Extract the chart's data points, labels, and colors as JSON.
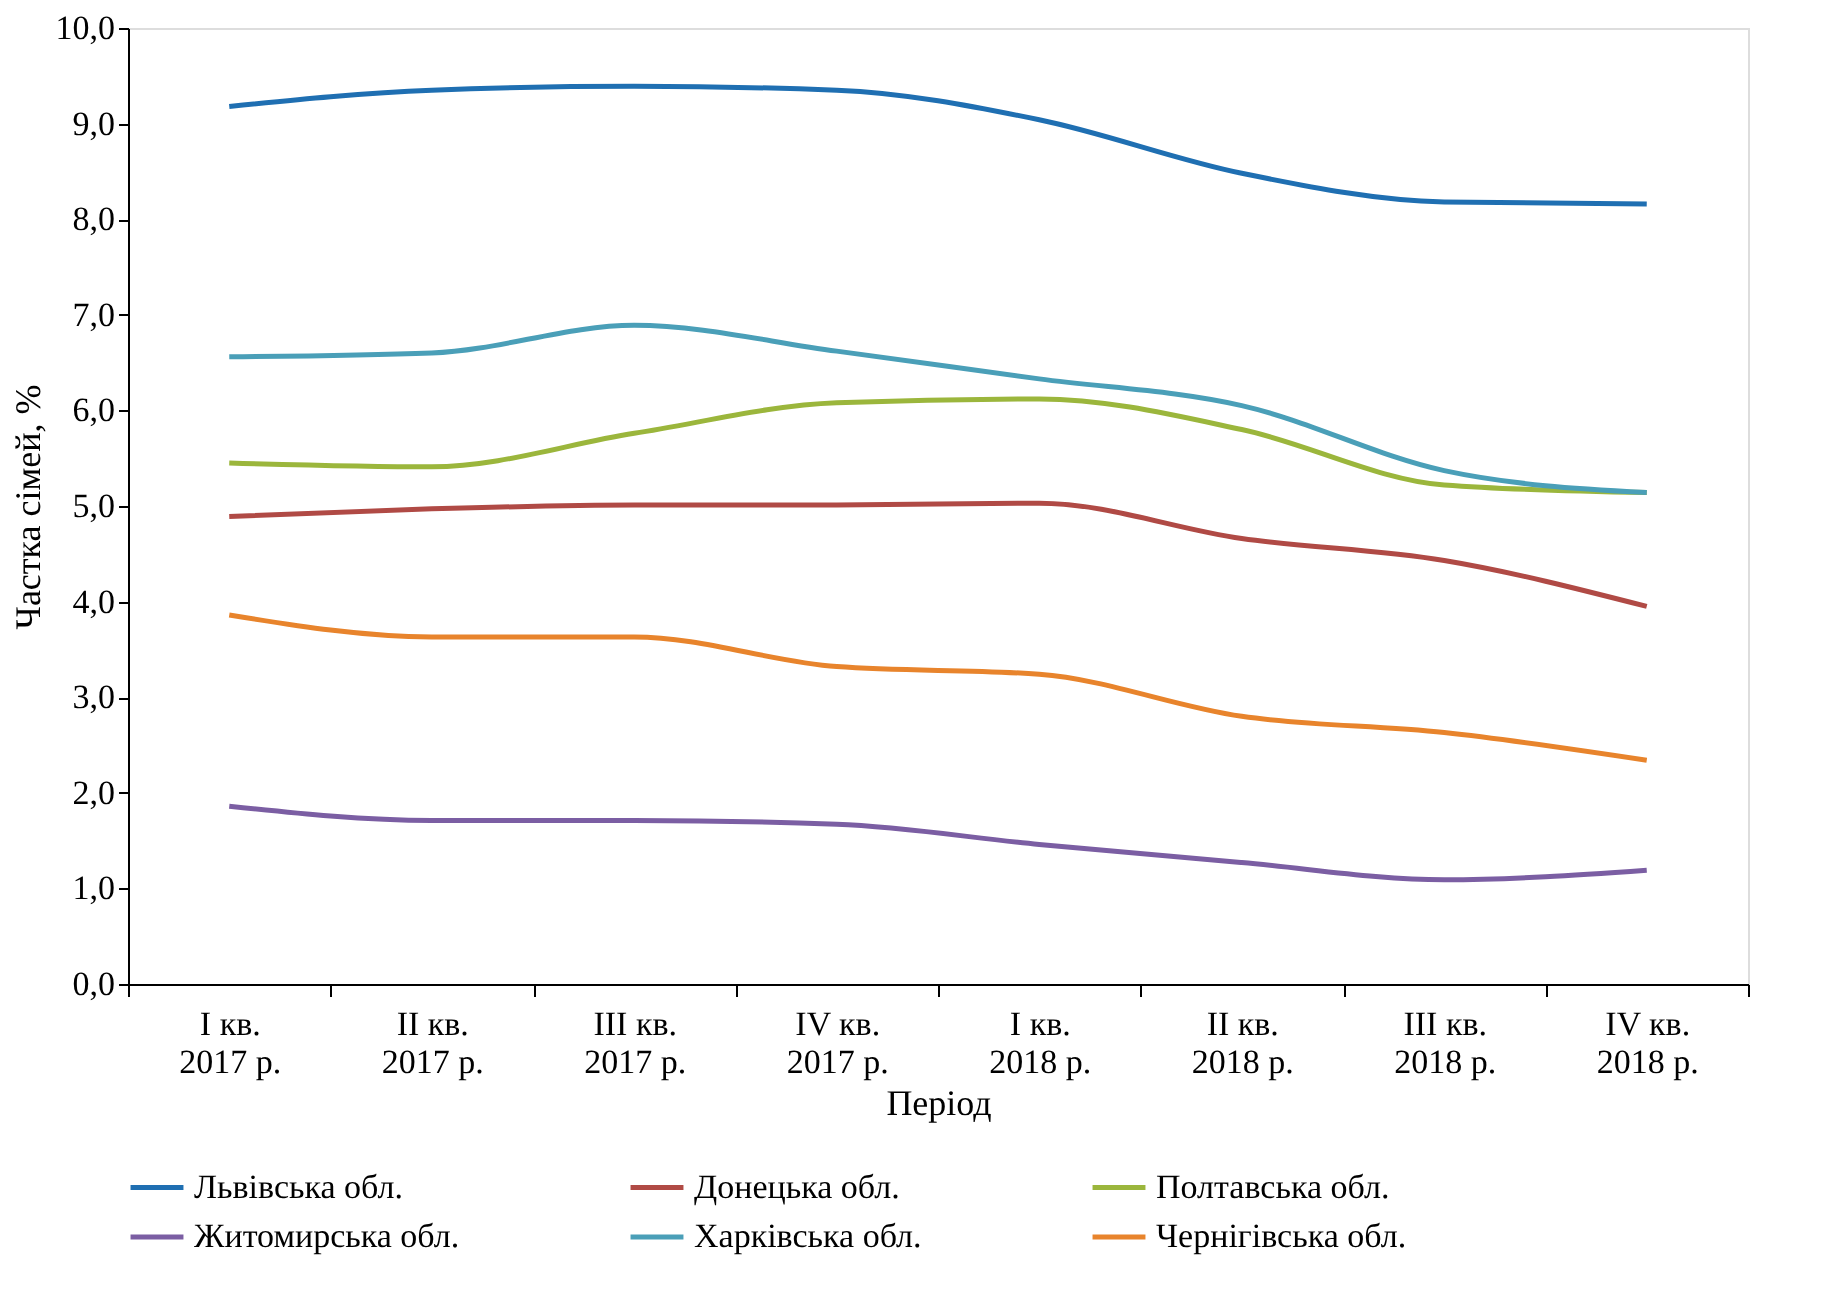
{
  "chart_data": {
    "type": "line",
    "xlabel": "Період",
    "ylabel": "Частка сімей, %",
    "categories": [
      "I кв.\n2017 р.",
      "II кв.\n2017 р.",
      "III кв.\n2017 р.",
      "IV кв.\n2017 р.",
      "I кв.\n2018 р.",
      "II кв.\n2018 р.",
      "III кв.\n2018 р.",
      "IV кв.\n2018 р."
    ],
    "series": [
      {
        "name": "Львівська обл.",
        "color": "#1f6fb2",
        "values": [
          9.18,
          9.35,
          9.39,
          9.35,
          9.04,
          8.48,
          8.18,
          8.16
        ]
      },
      {
        "name": "Донецька обл.",
        "color": "#b04a45",
        "values": [
          4.89,
          4.97,
          5.01,
          5.01,
          5.03,
          4.66,
          4.43,
          3.95
        ]
      },
      {
        "name": "Полтавська обл.",
        "color": "#9bb63c",
        "values": [
          5.45,
          5.41,
          5.76,
          6.08,
          6.12,
          5.8,
          5.22,
          5.14
        ]
      },
      {
        "name": "Житомирська обл.",
        "color": "#7b5ea3",
        "values": [
          1.86,
          1.71,
          1.71,
          1.67,
          1.46,
          1.27,
          1.09,
          1.19
        ]
      },
      {
        "name": "Харківська обл.",
        "color": "#4a9fb8",
        "values": [
          6.56,
          6.6,
          6.89,
          6.62,
          6.33,
          6.05,
          5.37,
          5.14
        ]
      },
      {
        "name": "Чернігівська обл.",
        "color": "#e8842c",
        "values": [
          3.86,
          3.63,
          3.63,
          3.32,
          3.24,
          2.8,
          2.63,
          2.34
        ]
      }
    ],
    "ylim": [
      0,
      10
    ],
    "yticks": [
      {
        "value": 0,
        "label": "0,0"
      },
      {
        "value": 1,
        "label": "1,0"
      },
      {
        "value": 2,
        "label": "2,0"
      },
      {
        "value": 3,
        "label": "3,0"
      },
      {
        "value": 4,
        "label": "4,0"
      },
      {
        "value": 5,
        "label": "5,0"
      },
      {
        "value": 6,
        "label": "6,0"
      },
      {
        "value": 7,
        "label": "7,0"
      },
      {
        "value": 8,
        "label": "8,0"
      },
      {
        "value": 9,
        "label": "9,0"
      },
      {
        "value": 10,
        "label": "10,0"
      }
    ],
    "grid": false,
    "legend": "bottom",
    "marker": "none",
    "line_style": "solid"
  }
}
